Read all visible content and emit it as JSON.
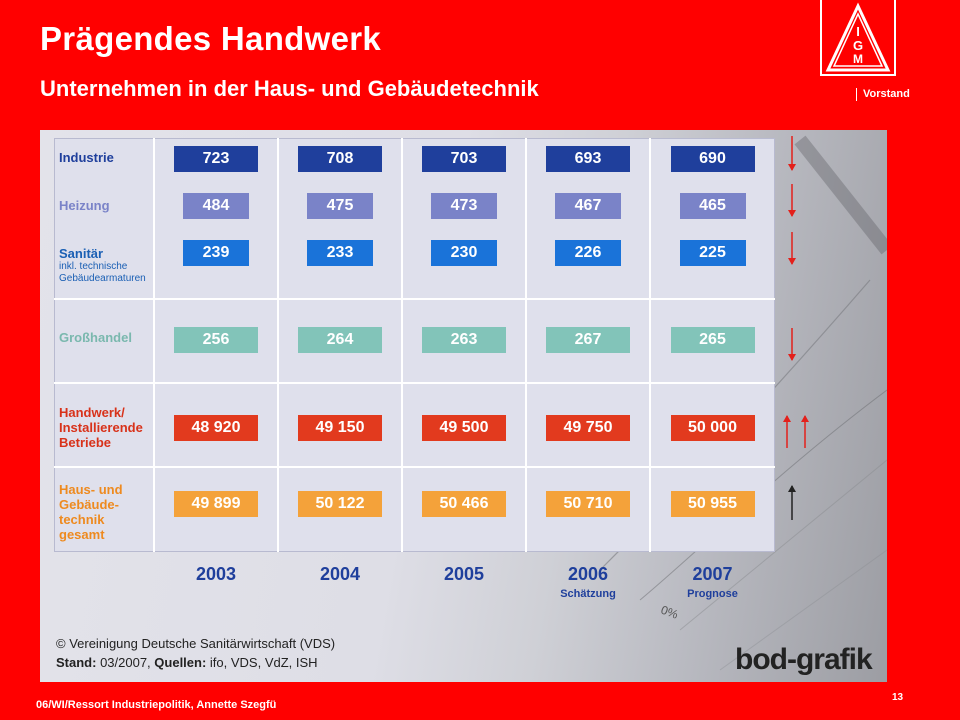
{
  "header": {
    "title": "Prägendes Handwerk",
    "subtitle": "Unternehmen in der Haus- und Gebäudetechnik",
    "org_label": "Vorstand",
    "logo_text": "IGM"
  },
  "footer": {
    "left_text": "06/WI/Ressort Industriepolitik, Annette Szegfü",
    "page_number": "13"
  },
  "chart_data": {
    "type": "table",
    "years": [
      "2003",
      "2004",
      "2005",
      "2006",
      "2007"
    ],
    "year_notes": [
      "",
      "",
      "",
      "Schätzung",
      "Prognose"
    ],
    "rows": [
      {
        "label": "Industrie",
        "sublabel": "",
        "values": [
          "723",
          "708",
          "703",
          "693",
          "690"
        ],
        "color": "#1f3f9c",
        "label_color": "#1f3f9c",
        "trend": "down"
      },
      {
        "label": "Heizung",
        "sublabel": "",
        "values": [
          "484",
          "475",
          "473",
          "467",
          "465"
        ],
        "color": "#7a83c8",
        "label_color": "#7a83c8",
        "trend": "down"
      },
      {
        "label": "Sanitär",
        "sublabel": "inkl. technische Gebäudearmaturen",
        "values": [
          "239",
          "233",
          "230",
          "226",
          "225"
        ],
        "color": "#1a73d9",
        "label_color": "#1a5fb4",
        "trend": "down"
      },
      {
        "label": "Großhandel",
        "sublabel": "",
        "values": [
          "256",
          "264",
          "263",
          "267",
          "265"
        ],
        "color": "#82c4b9",
        "label_color": "#7ab8ae",
        "trend": "down"
      },
      {
        "label": "Handwerk/ Installierende Betriebe",
        "sublabel": "",
        "values": [
          "48 920",
          "49 150",
          "49 500",
          "49 750",
          "50 000"
        ],
        "color": "#e23a1e",
        "label_color": "#d8321a",
        "trend": "up"
      },
      {
        "label": "Haus- und Gebäude- technik gesamt",
        "sublabel": "",
        "values": [
          "49 899",
          "50 122",
          "50 466",
          "50 710",
          "50 955"
        ],
        "color": "#f4a23a",
        "label_color": "#ee8a1f",
        "trend": "up"
      }
    ],
    "source_line1": "© Vereinigung Deutsche Sanitärwirtschaft (VDS)",
    "source_line2_bold": "Stand:",
    "source_line2_a": " 03/2007, ",
    "source_line2_bold2": "Quellen:",
    "source_line2_b": " ifo, VDS, VdZ, ISH",
    "brand": "bod-grafik"
  }
}
